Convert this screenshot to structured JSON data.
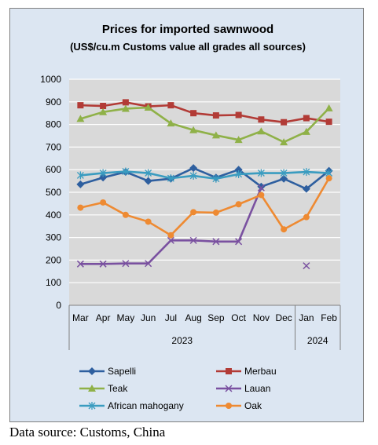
{
  "chart_data": {
    "type": "line",
    "title": "Prices for imported sawnwood",
    "subtitle": "(US$/cu.m Customs value all grades all sources)",
    "categories": [
      "Mar",
      "Apr",
      "May",
      "Jun",
      "Jul",
      "Aug",
      "Sep",
      "Oct",
      "Nov",
      "Dec",
      "Jan",
      "Feb"
    ],
    "year_groups": [
      {
        "label": "2023",
        "span": 10
      },
      {
        "label": "2024",
        "span": 2
      }
    ],
    "y_ticks": [
      0,
      100,
      200,
      300,
      400,
      500,
      600,
      700,
      800,
      900,
      1000
    ],
    "ylim": [
      0,
      1000
    ],
    "grid": true,
    "legend_position": "bottom",
    "series": [
      {
        "name": "Sapelli",
        "color": "#2e5f9f",
        "marker": "diamond",
        "values": [
          535,
          565,
          590,
          550,
          560,
          607,
          565,
          600,
          525,
          560,
          515,
          595
        ]
      },
      {
        "name": "Merbau",
        "color": "#b23b36",
        "marker": "square",
        "values": [
          885,
          882,
          898,
          880,
          885,
          850,
          840,
          842,
          822,
          810,
          828,
          812
        ]
      },
      {
        "name": "Teak",
        "color": "#8fb148",
        "marker": "triangle",
        "values": [
          825,
          855,
          870,
          875,
          805,
          775,
          752,
          732,
          770,
          722,
          768,
          872
        ]
      },
      {
        "name": "Lauan",
        "color": "#7a51a0",
        "marker": "x",
        "values": [
          183,
          183,
          185,
          185,
          287,
          287,
          282,
          282,
          520,
          null,
          175,
          null
        ]
      },
      {
        "name": "African mahogany",
        "color": "#3a9cc0",
        "marker": "asterisk",
        "values": [
          575,
          585,
          592,
          585,
          562,
          573,
          560,
          580,
          585,
          585,
          590,
          585
        ]
      },
      {
        "name": "Oak",
        "color": "#ee8a32",
        "marker": "circle",
        "values": [
          432,
          455,
          400,
          370,
          310,
          412,
          410,
          447,
          488,
          336,
          390,
          562
        ]
      }
    ]
  },
  "source_note": "Data source: Customs, China"
}
